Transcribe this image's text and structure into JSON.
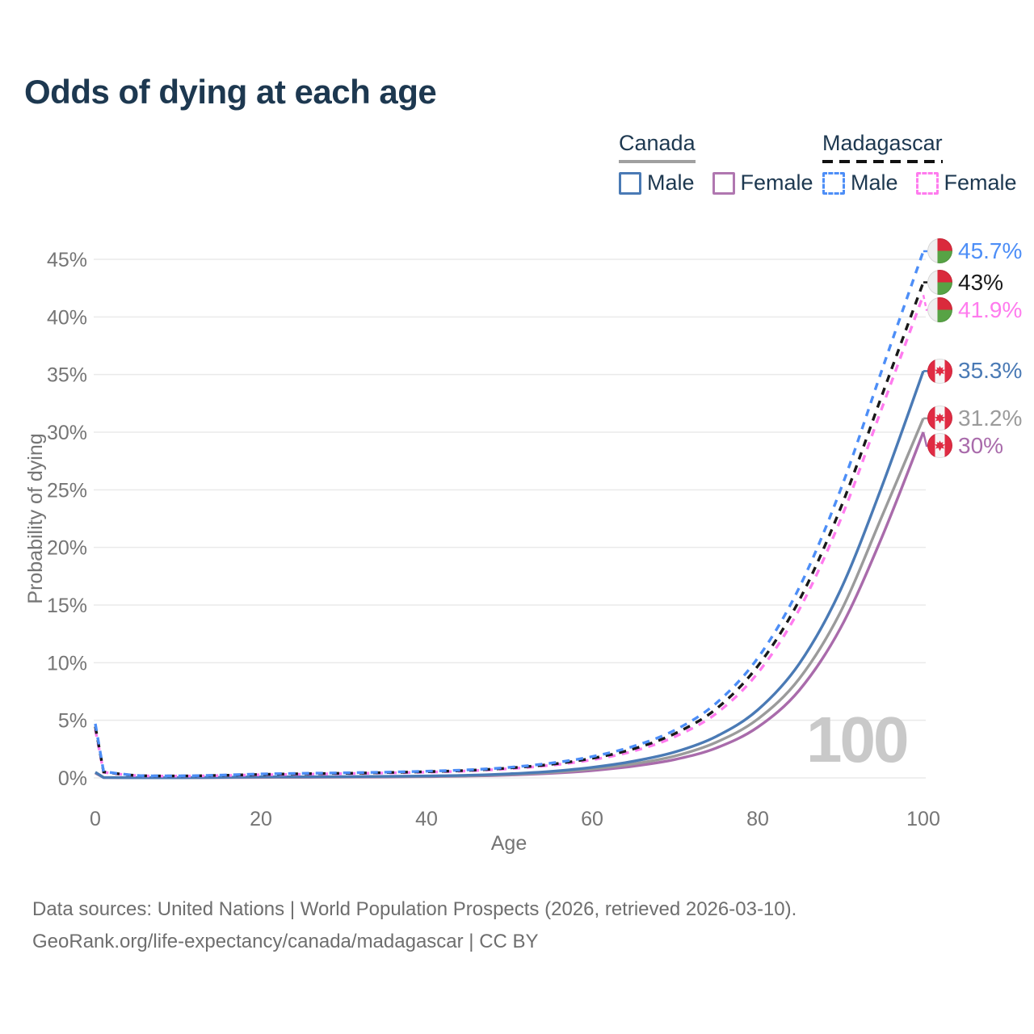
{
  "title": "Odds of dying at each age",
  "legend": {
    "groups": [
      {
        "name": "Canada",
        "line_style": "solid",
        "underline_color": "#a0a0a0",
        "items": [
          {
            "label": "Male",
            "color": "#4a7ab5"
          },
          {
            "label": "Female",
            "color": "#b077b0"
          }
        ]
      },
      {
        "name": "Madagascar",
        "line_style": "dashed",
        "underline_color": "#111111",
        "items": [
          {
            "label": "Male",
            "color": "#4d8ef7"
          },
          {
            "label": "Female",
            "color": "#ff7bee"
          }
        ]
      }
    ]
  },
  "watermark": "100",
  "footer": {
    "line1": "Data sources: United Nations | World Population Prospects (2026, retrieved 2026-03-10).",
    "line2": "GeoRank.org/life-expectancy/canada/madagascar | CC BY"
  },
  "chart_data": {
    "type": "line",
    "title": "Odds of dying at each age",
    "xlabel": "Age",
    "ylabel": "Probability of dying",
    "x_ticks": [
      0,
      20,
      40,
      60,
      80,
      100
    ],
    "y_ticks_percent": [
      0,
      5,
      10,
      15,
      20,
      25,
      30,
      35,
      40,
      45
    ],
    "xlim": [
      0,
      100
    ],
    "ylim_percent": [
      0,
      46
    ],
    "grid": "horizontal",
    "legend_position": "top-right",
    "ages": [
      0,
      1,
      5,
      10,
      15,
      20,
      25,
      30,
      35,
      40,
      45,
      50,
      55,
      60,
      65,
      70,
      75,
      80,
      85,
      90,
      95,
      100
    ],
    "series": [
      {
        "name": "Madagascar Male",
        "country": "Madagascar",
        "sex": "male",
        "color": "#4d8ef7",
        "dash": true,
        "end_value": 45.7,
        "values": [
          4.7,
          0.55,
          0.22,
          0.18,
          0.24,
          0.34,
          0.4,
          0.44,
          0.5,
          0.58,
          0.7,
          0.92,
          1.28,
          1.85,
          2.75,
          4.15,
          6.5,
          10.4,
          16.5,
          25.0,
          35.4,
          45.7
        ]
      },
      {
        "name": "Madagascar Both",
        "country": "Madagascar",
        "sex": "both",
        "color": "#191919",
        "dash": true,
        "end_value": 43,
        "values": [
          4.45,
          0.52,
          0.21,
          0.17,
          0.22,
          0.3,
          0.36,
          0.4,
          0.46,
          0.54,
          0.65,
          0.86,
          1.18,
          1.7,
          2.52,
          3.85,
          6.0,
          9.7,
          15.4,
          23.4,
          33.2,
          43.0
        ]
      },
      {
        "name": "Madagascar Female",
        "country": "Madagascar",
        "sex": "female",
        "color": "#ff7bee",
        "dash": true,
        "end_value": 41.9,
        "values": [
          4.2,
          0.49,
          0.2,
          0.16,
          0.2,
          0.27,
          0.32,
          0.37,
          0.43,
          0.5,
          0.61,
          0.8,
          1.1,
          1.57,
          2.33,
          3.58,
          5.6,
          9.1,
          14.6,
          22.4,
          32.1,
          41.9
        ]
      },
      {
        "name": "Canada Male",
        "country": "Canada",
        "sex": "male",
        "color": "#4a7ab5",
        "dash": false,
        "end_value": 35.3,
        "values": [
          0.5,
          0.04,
          0.02,
          0.02,
          0.05,
          0.09,
          0.1,
          0.11,
          0.13,
          0.17,
          0.23,
          0.36,
          0.57,
          0.92,
          1.45,
          2.25,
          3.6,
          5.9,
          9.9,
          16.3,
          25.3,
          35.3
        ]
      },
      {
        "name": "Canada Both",
        "country": "Canada",
        "sex": "both",
        "color": "#9b9b9b",
        "dash": false,
        "end_value": 31.2,
        "values": [
          0.46,
          0.04,
          0.02,
          0.02,
          0.04,
          0.07,
          0.08,
          0.09,
          0.11,
          0.14,
          0.19,
          0.3,
          0.48,
          0.78,
          1.22,
          1.9,
          3.1,
          5.1,
          8.6,
          14.4,
          22.7,
          31.2
        ]
      },
      {
        "name": "Canada Female",
        "country": "Canada",
        "sex": "female",
        "color": "#a96bab",
        "dash": false,
        "end_value": 30,
        "values": [
          0.42,
          0.03,
          0.02,
          0.02,
          0.03,
          0.04,
          0.05,
          0.06,
          0.08,
          0.11,
          0.16,
          0.25,
          0.4,
          0.64,
          1.02,
          1.6,
          2.6,
          4.4,
          7.6,
          13.0,
          20.9,
          30.0
        ]
      }
    ],
    "end_labels": [
      {
        "text": "45.7%",
        "series": "Madagascar Male",
        "flag": "madagascar"
      },
      {
        "text": "43%",
        "series": "Madagascar Both",
        "flag": "madagascar"
      },
      {
        "text": "41.9%",
        "series": "Madagascar Female",
        "flag": "madagascar"
      },
      {
        "text": "35.3%",
        "series": "Canada Male",
        "flag": "canada"
      },
      {
        "text": "31.2%",
        "series": "Canada Both",
        "flag": "canada"
      },
      {
        "text": "30%",
        "series": "Canada Female",
        "flag": "canada"
      }
    ]
  }
}
